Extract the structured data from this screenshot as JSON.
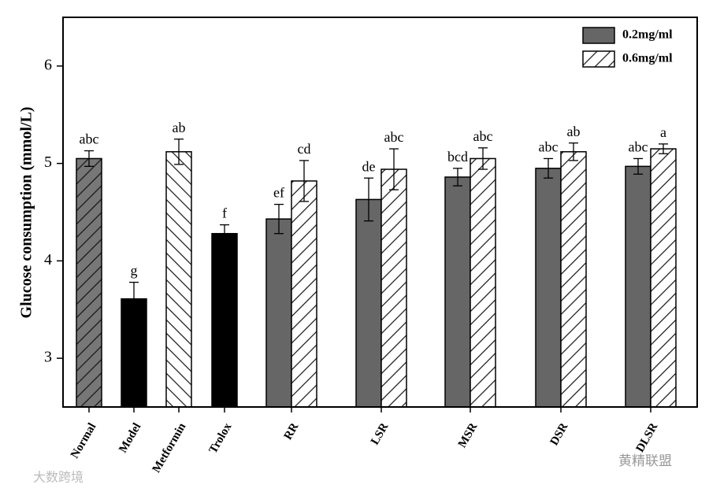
{
  "chart_data": {
    "type": "bar",
    "y_label": "Glucose consumption (mmol/L)",
    "ylim": [
      2.5,
      6.5
    ],
    "yticks": [
      3,
      4,
      5,
      6
    ],
    "categories": [
      "Normal",
      "Model",
      "Metformin",
      "Trolox",
      "RR",
      "LSR",
      "MSR",
      "DSR",
      "DLSR"
    ],
    "controls": {
      "values": [
        5.05,
        3.61,
        5.12,
        4.28,
        null,
        null,
        null,
        null,
        null
      ],
      "errors": [
        0.08,
        0.17,
        0.13,
        0.09,
        null,
        null,
        null,
        null,
        null
      ],
      "annotations": [
        "abc",
        "g",
        "ab",
        "f",
        null,
        null,
        null,
        null,
        null
      ],
      "colors": [
        "#777777",
        "#000000",
        "#ffffff",
        "#000000",
        null,
        null,
        null,
        null,
        null
      ],
      "hatch": [
        "back",
        null,
        "forward",
        null,
        null,
        null,
        null,
        null,
        null
      ]
    },
    "series": [
      {
        "name": "0.2mg/ml",
        "color": "#666666",
        "hatch": null,
        "values": [
          null,
          null,
          null,
          null,
          4.43,
          4.63,
          4.86,
          4.95,
          4.97
        ],
        "errors": [
          null,
          null,
          null,
          null,
          0.15,
          0.22,
          0.09,
          0.1,
          0.08
        ],
        "annotations": [
          null,
          null,
          null,
          null,
          "ef",
          "de",
          "bcd",
          "abc",
          "abc"
        ]
      },
      {
        "name": "0.6mg/ml",
        "color": "#ffffff",
        "hatch": "back",
        "values": [
          null,
          null,
          null,
          null,
          4.82,
          4.94,
          5.05,
          5.12,
          5.15
        ],
        "errors": [
          null,
          null,
          null,
          null,
          0.21,
          0.21,
          0.11,
          0.09,
          0.05
        ],
        "annotations": [
          null,
          null,
          null,
          null,
          "cd",
          "abc",
          "abc",
          "ab",
          "a"
        ]
      }
    ],
    "legend": "upper right"
  },
  "watermarks": [
    "大数跨境",
    "黄精联盟"
  ]
}
